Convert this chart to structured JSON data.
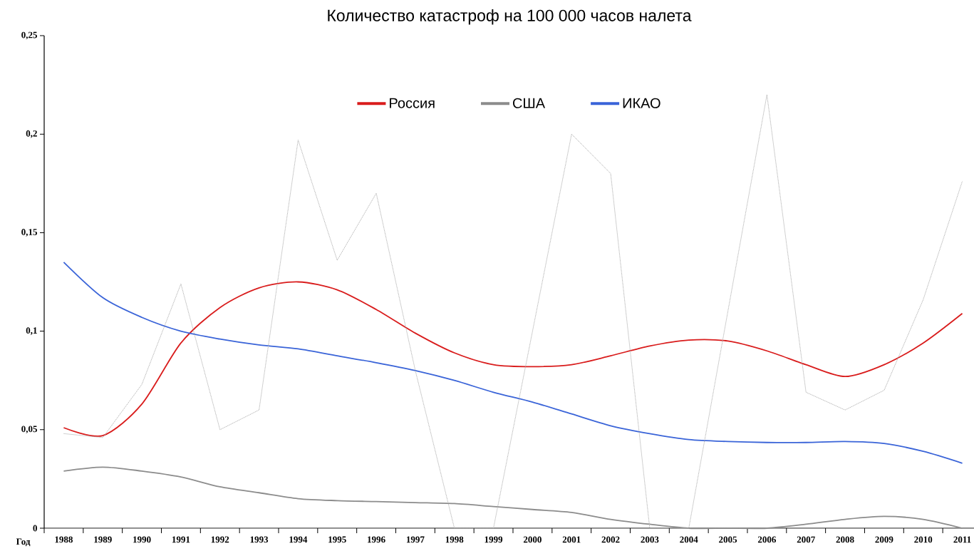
{
  "chart_data": {
    "type": "line",
    "title": "Количество катастроф на 100 000 часов налета",
    "xlabel": "Год",
    "categories": [
      "1988",
      "1989",
      "1990",
      "1991",
      "1992",
      "1993",
      "1994",
      "1995",
      "1996",
      "1997",
      "1998",
      "1999",
      "2000",
      "2001",
      "2002",
      "2003",
      "2004",
      "2005",
      "2006",
      "2007",
      "2008",
      "2009",
      "2010",
      "2011"
    ],
    "series": [
      {
        "name": "Россия",
        "color": "#d91c1c",
        "values": [
          0.051,
          0.047,
          0.063,
          0.094,
          0.112,
          0.122,
          0.125,
          0.121,
          0.111,
          0.099,
          0.089,
          0.083,
          0.082,
          0.083,
          0.0875,
          0.0925,
          0.0955,
          0.095,
          0.09,
          0.083,
          0.077,
          0.083,
          0.094,
          0.109
        ]
      },
      {
        "name": "США",
        "color": "#8c8c8c",
        "values": [
          0.029,
          0.031,
          0.029,
          0.026,
          0.021,
          0.018,
          0.015,
          0.014,
          0.0135,
          0.013,
          0.0125,
          0.011,
          0.0095,
          0.008,
          0.0045,
          0.002,
          0,
          0,
          0,
          0.002,
          0.0045,
          0.006,
          0.0045,
          0
        ]
      },
      {
        "name": "ИКАО",
        "color": "#3a64d8",
        "values": [
          0.135,
          0.117,
          0.107,
          0.1,
          0.096,
          0.093,
          0.091,
          0.0875,
          0.084,
          0.08,
          0.075,
          0.069,
          0.064,
          0.058,
          0.052,
          0.048,
          0.045,
          0.044,
          0.0435,
          0.0435,
          0.044,
          0.043,
          0.039,
          0.033
        ]
      },
      {
        "color": "#a8a8a8",
        "line_style": "dotted",
        "values": [
          0.048,
          0.046,
          0.073,
          0.124,
          0.05,
          0.06,
          0.197,
          0.136,
          0.17,
          0.08,
          0,
          0,
          0.1,
          0.2,
          0.18,
          0,
          0,
          0.11,
          0.22,
          0.069,
          0.06,
          0.07,
          0.116,
          0.176
        ]
      }
    ],
    "ylim": [
      0,
      0.25
    ],
    "yticks": [
      0,
      {
        "value": 0.05,
        "label": "0,05"
      },
      {
        "value": 0.1,
        "label": "0,1"
      },
      {
        "value": 0.15,
        "label": "0,15"
      },
      {
        "value": 0.2,
        "label": "0,2"
      },
      {
        "value": 0.25,
        "label": "0,25"
      }
    ],
    "grid": false,
    "legend": "top",
    "marker": "none"
  }
}
